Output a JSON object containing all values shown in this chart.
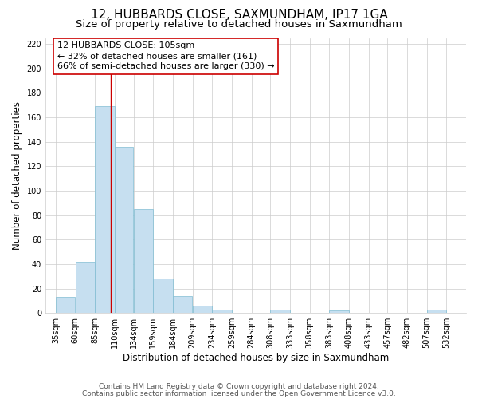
{
  "title": "12, HUBBARDS CLOSE, SAXMUNDHAM, IP17 1GA",
  "subtitle": "Size of property relative to detached houses in Saxmundham",
  "xlabel": "Distribution of detached houses by size in Saxmundham",
  "ylabel": "Number of detached properties",
  "bar_left_edges": [
    35,
    60,
    85,
    110,
    134,
    159,
    184,
    209,
    234,
    259,
    284,
    308,
    333,
    358,
    383,
    408,
    433,
    457,
    482,
    507
  ],
  "bar_heights": [
    13,
    42,
    169,
    136,
    85,
    28,
    14,
    6,
    3,
    0,
    0,
    3,
    0,
    0,
    2,
    0,
    0,
    0,
    0,
    3
  ],
  "bar_widths": [
    25,
    25,
    25,
    24,
    25,
    25,
    25,
    25,
    25,
    25,
    24,
    25,
    25,
    25,
    25,
    25,
    24,
    25,
    25,
    25
  ],
  "bar_color": "#c6dff0",
  "bar_edgecolor": "#7fbcd2",
  "tick_labels": [
    "35sqm",
    "60sqm",
    "85sqm",
    "110sqm",
    "134sqm",
    "159sqm",
    "184sqm",
    "209sqm",
    "234sqm",
    "259sqm",
    "284sqm",
    "308sqm",
    "333sqm",
    "358sqm",
    "383sqm",
    "408sqm",
    "433sqm",
    "457sqm",
    "482sqm",
    "507sqm",
    "532sqm"
  ],
  "tick_positions": [
    35,
    60,
    85,
    110,
    134,
    159,
    184,
    209,
    234,
    259,
    284,
    308,
    333,
    358,
    383,
    408,
    433,
    457,
    482,
    507,
    532
  ],
  "ylim": [
    0,
    225
  ],
  "yticks": [
    0,
    20,
    40,
    60,
    80,
    100,
    120,
    140,
    160,
    180,
    200,
    220
  ],
  "xlim": [
    22,
    557
  ],
  "vline_x": 105,
  "vline_color": "#cc0000",
  "ann_line1": "12 HUBBARDS CLOSE: 105sqm",
  "ann_line2": "← 32% of detached houses are smaller (161)",
  "ann_line3": "66% of semi-detached houses are larger (330) →",
  "footer_line1": "Contains HM Land Registry data © Crown copyright and database right 2024.",
  "footer_line2": "Contains public sector information licensed under the Open Government Licence v3.0.",
  "background_color": "#ffffff",
  "grid_color": "#cccccc",
  "title_fontsize": 11,
  "subtitle_fontsize": 9.5,
  "axis_label_fontsize": 8.5,
  "tick_fontsize": 7,
  "ann_fontsize": 8,
  "footer_fontsize": 6.5
}
